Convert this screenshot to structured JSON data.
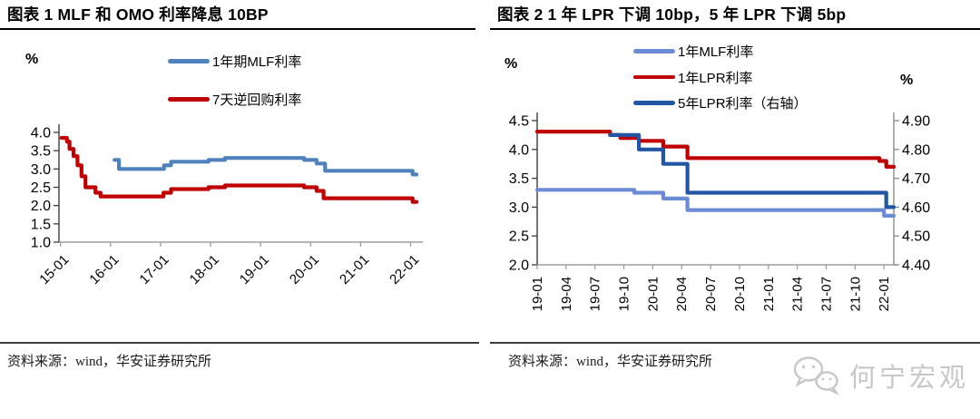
{
  "chart_data": [
    {
      "type": "line",
      "title": "图表 1 MLF 和 OMO 利率降息 10BP",
      "ylabel": "%",
      "source": "资料来源：wind，华安证券研究所",
      "grid": false,
      "legend_position": "top-center",
      "ylim": [
        1.0,
        4.0
      ],
      "xlim": [
        2014.97,
        2022.19
      ],
      "y_ticklabels": [
        "4.0",
        "3.5",
        "3.0",
        "2.5",
        "2.0",
        "1.5",
        "1.0"
      ],
      "x_ticklabels": [
        "15-01",
        "16-01",
        "17-01",
        "18-01",
        "19-01",
        "20-01",
        "21-01",
        "22-01"
      ],
      "series": [
        {
          "name": "1年期MLF利率",
          "color": "#4F81BD",
          "axis": "left",
          "step": true,
          "points": [
            [
              2016.08,
              3.25
            ],
            [
              2016.17,
              3.0
            ],
            [
              2017.07,
              3.1
            ],
            [
              2017.21,
              3.2
            ],
            [
              2017.96,
              3.25
            ],
            [
              2018.29,
              3.3
            ],
            [
              2019.87,
              3.25
            ],
            [
              2020.12,
              3.15
            ],
            [
              2020.29,
              2.95
            ],
            [
              2022.04,
              2.85
            ]
          ],
          "x_end": 2022.12
        },
        {
          "name": "7天逆回购利率",
          "color": "#C00000",
          "axis": "left",
          "step": true,
          "points": [
            [
              2015.02,
              3.85
            ],
            [
              2015.13,
              3.75
            ],
            [
              2015.18,
              3.55
            ],
            [
              2015.26,
              3.35
            ],
            [
              2015.34,
              3.1
            ],
            [
              2015.42,
              2.8
            ],
            [
              2015.5,
              2.5
            ],
            [
              2015.7,
              2.35
            ],
            [
              2015.8,
              2.25
            ],
            [
              2017.06,
              2.35
            ],
            [
              2017.21,
              2.45
            ],
            [
              2017.96,
              2.5
            ],
            [
              2018.29,
              2.55
            ],
            [
              2019.87,
              2.5
            ],
            [
              2020.12,
              2.4
            ],
            [
              2020.26,
              2.2
            ],
            [
              2022.04,
              2.1
            ]
          ],
          "x_end": 2022.12
        }
      ]
    },
    {
      "type": "line",
      "title": "图表 2 1 年 LPR 下调 10bp，5 年 LPR 下调 5bp",
      "ylabel": "%",
      "ylabel_right": "%",
      "source": "资料来源：wind，华安证券研究所",
      "grid": false,
      "legend_position": "top-center",
      "ylim": [
        2.0,
        4.5
      ],
      "ylim_right": [
        4.4,
        4.9
      ],
      "xlim": [
        2019.0,
        2022.085
      ],
      "y_ticklabels": [
        "4.5",
        "4.0",
        "3.5",
        "3.0",
        "2.5",
        "2.0"
      ],
      "y_ticklabels_right": [
        "4.90",
        "4.80",
        "4.70",
        "4.60",
        "4.50",
        "4.40"
      ],
      "x_ticklabels": [
        "19-01",
        "19-04",
        "19-07",
        "19-10",
        "20-01",
        "20-04",
        "20-07",
        "20-10",
        "21-01",
        "21-04",
        "21-07",
        "21-10",
        "22-01"
      ],
      "series": [
        {
          "name": "1年MLF利率",
          "color": "#6B8CD4",
          "axis": "left",
          "step": true,
          "points": [
            [
              2019.0,
              3.3
            ],
            [
              2019.84,
              3.25
            ],
            [
              2020.09,
              3.15
            ],
            [
              2020.3,
              2.95
            ],
            [
              2022.0,
              2.85
            ]
          ],
          "x_end": 2022.085
        },
        {
          "name": "1年LPR利率",
          "color": "#C00000",
          "axis": "left",
          "step": true,
          "points": [
            [
              2019.0,
              4.31
            ],
            [
              2019.63,
              4.25
            ],
            [
              2019.72,
              4.2
            ],
            [
              2019.88,
              4.15
            ],
            [
              2020.09,
              4.05
            ],
            [
              2020.3,
              3.85
            ],
            [
              2021.96,
              3.8
            ],
            [
              2022.02,
              3.7
            ]
          ],
          "x_end": 2022.085
        },
        {
          "name": "5年LPR利率（右轴）",
          "color": "#2156A5",
          "axis": "right",
          "step": true,
          "points": [
            [
              2019.63,
              4.85
            ],
            [
              2019.88,
              4.8
            ],
            [
              2020.09,
              4.75
            ],
            [
              2020.3,
              4.65
            ],
            [
              2022.02,
              4.6
            ]
          ],
          "x_end": 2022.085
        }
      ]
    }
  ],
  "watermark": {
    "text": "何宁宏观",
    "icon": "wechat-icon"
  }
}
